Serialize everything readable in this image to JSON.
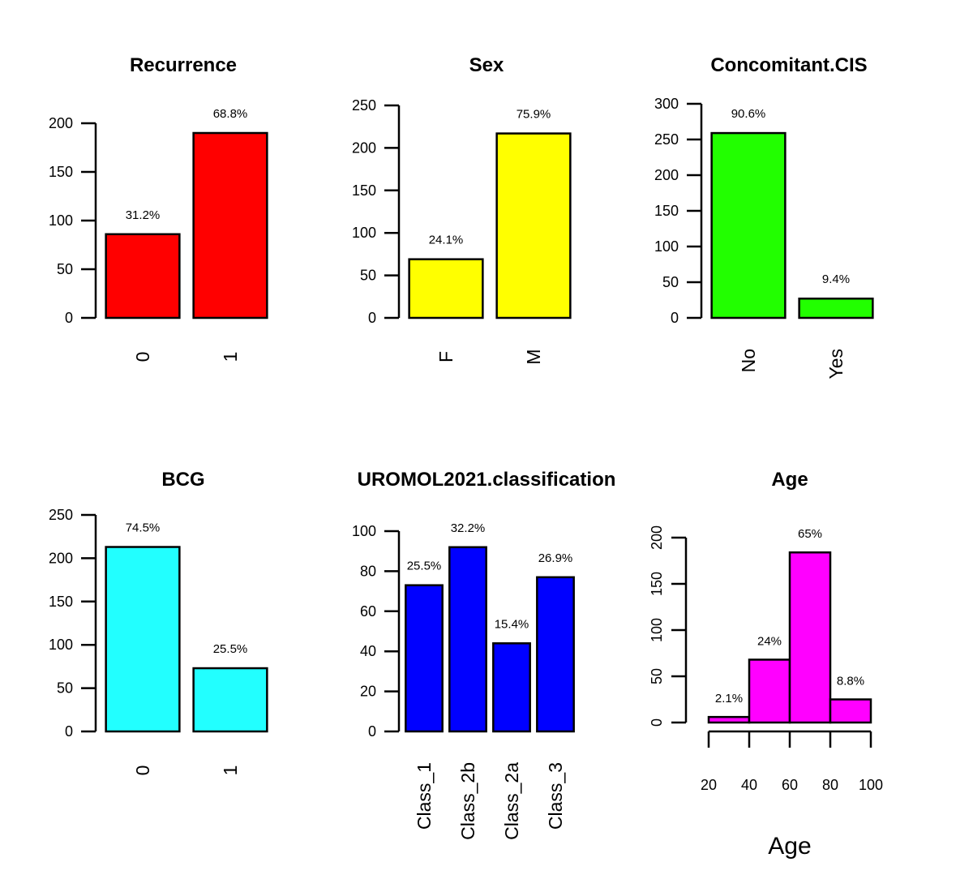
{
  "chart_data": [
    {
      "type": "bar",
      "title": "Recurrence",
      "categories": [
        "0",
        "1"
      ],
      "values": [
        86,
        190
      ],
      "labels": [
        "31.2%",
        "68.8%"
      ],
      "ylim": [
        0,
        200
      ],
      "yticks": [
        "0",
        "50",
        "100",
        "150",
        "200"
      ],
      "color": "#ff0000"
    },
    {
      "type": "bar",
      "title": "Sex",
      "categories": [
        "F",
        "M"
      ],
      "values": [
        69,
        217
      ],
      "labels": [
        "24.1%",
        "75.9%"
      ],
      "ylim": [
        0,
        250
      ],
      "yticks": [
        "0",
        "50",
        "100",
        "150",
        "200",
        "250"
      ],
      "color": "#ffff00"
    },
    {
      "type": "bar",
      "title": "Concomitant.CIS",
      "categories": [
        "No",
        "Yes"
      ],
      "values": [
        259,
        27
      ],
      "labels": [
        "90.6%",
        "9.4%"
      ],
      "ylim": [
        0,
        300
      ],
      "yticks": [
        "0",
        "50",
        "100",
        "150",
        "200",
        "250",
        "300"
      ],
      "color": "#22ff00"
    },
    {
      "type": "bar",
      "title": "BCG",
      "categories": [
        "0",
        "1"
      ],
      "values": [
        213,
        73
      ],
      "labels": [
        "74.5%",
        "25.5%"
      ],
      "ylim": [
        0,
        250
      ],
      "yticks": [
        "0",
        "50",
        "100",
        "150",
        "200",
        "250"
      ],
      "color": "#22ffff"
    },
    {
      "type": "bar",
      "title": "UROMOL2021.classification",
      "categories": [
        "Class_1",
        "Class_2b",
        "Class_2a",
        "Class_3"
      ],
      "values": [
        73,
        92,
        44,
        77
      ],
      "labels": [
        "25.5%",
        "32.2%",
        "15.4%",
        "26.9%"
      ],
      "ylim": [
        0,
        100
      ],
      "yticks": [
        "0",
        "20",
        "40",
        "60",
        "80",
        "100"
      ],
      "color": "#0000ff"
    },
    {
      "type": "histogram",
      "title": "Age",
      "xlabel": "Age",
      "bins": [
        [
          20,
          40
        ],
        [
          40,
          60
        ],
        [
          60,
          80
        ],
        [
          80,
          100
        ]
      ],
      "values": [
        6,
        68,
        184,
        25
      ],
      "labels": [
        "2.1%",
        "24%",
        "65%",
        "8.8%"
      ],
      "xlim": [
        20,
        100
      ],
      "ylim": [
        0,
        200
      ],
      "xticks": [
        "20",
        "40",
        "60",
        "80",
        "100"
      ],
      "yticks": [
        "0",
        "50",
        "100",
        "150",
        "200"
      ],
      "color": "#ff00ff"
    }
  ]
}
